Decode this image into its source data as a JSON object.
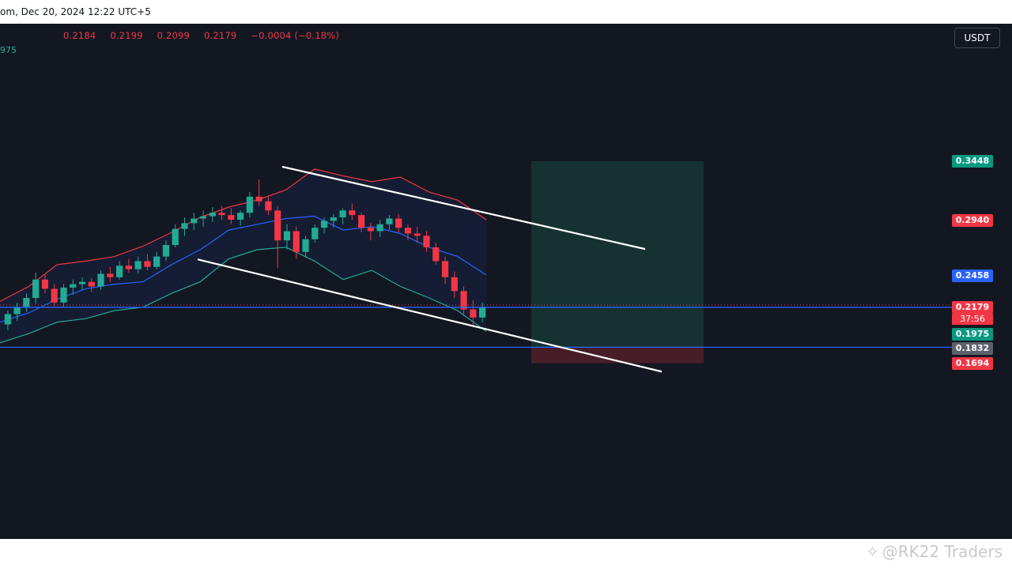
{
  "header": {
    "text": "om, Dec 20, 2024 12:22 UTC+5"
  },
  "ohlc": {
    "open": "0.2184",
    "high": "0.2199",
    "low": "0.2099",
    "close": "0.2179",
    "change": "−0.0004 (−0.18%)"
  },
  "indicator_value": "975",
  "currency": "USDT",
  "price_labels": {
    "target": "0.3448",
    "upper_band": "0.2940",
    "middle_band": "0.2458",
    "last_price": "0.2179",
    "countdown": "37:56",
    "lower_band": "0.1975",
    "entry": "0.1832",
    "stop": "0.1694"
  },
  "colors": {
    "background": "#131722",
    "up": "#22ab94",
    "down": "#f23645",
    "upper_band": "#f23645",
    "middle_band": "#2962ff",
    "lower_band": "#22ab94",
    "trendline": "#ffffff",
    "hline": "#2962ff",
    "profit_zone": "#163431",
    "loss_zone": "#4a1f29"
  },
  "watermark": "@RK22 Traders",
  "chart_data": {
    "type": "candlestick",
    "y_unit": "USDT",
    "bands": {
      "upper": [
        0.223,
        0.236,
        0.255,
        0.258,
        0.262,
        0.271,
        0.283,
        0.296,
        0.305,
        0.311,
        0.32,
        0.338,
        0.332,
        0.327,
        0.331,
        0.318,
        0.311,
        0.294
      ],
      "middle": [
        0.205,
        0.213,
        0.225,
        0.234,
        0.238,
        0.24,
        0.255,
        0.268,
        0.285,
        0.29,
        0.295,
        0.297,
        0.285,
        0.288,
        0.282,
        0.27,
        0.262,
        0.246
      ],
      "lower": [
        0.187,
        0.195,
        0.205,
        0.208,
        0.215,
        0.218,
        0.23,
        0.24,
        0.26,
        0.268,
        0.27,
        0.258,
        0.242,
        0.25,
        0.236,
        0.226,
        0.215,
        0.197
      ]
    },
    "candles": [
      {
        "o": 0.203,
        "h": 0.215,
        "l": 0.198,
        "c": 0.212
      },
      {
        "o": 0.212,
        "h": 0.222,
        "l": 0.206,
        "c": 0.218
      },
      {
        "o": 0.218,
        "h": 0.23,
        "l": 0.214,
        "c": 0.226
      },
      {
        "o": 0.226,
        "h": 0.248,
        "l": 0.221,
        "c": 0.242
      },
      {
        "o": 0.242,
        "h": 0.247,
        "l": 0.23,
        "c": 0.234
      },
      {
        "o": 0.234,
        "h": 0.238,
        "l": 0.219,
        "c": 0.222
      },
      {
        "o": 0.222,
        "h": 0.238,
        "l": 0.218,
        "c": 0.235
      },
      {
        "o": 0.235,
        "h": 0.242,
        "l": 0.229,
        "c": 0.238
      },
      {
        "o": 0.238,
        "h": 0.244,
        "l": 0.233,
        "c": 0.24
      },
      {
        "o": 0.24,
        "h": 0.243,
        "l": 0.231,
        "c": 0.236
      },
      {
        "o": 0.236,
        "h": 0.25,
        "l": 0.233,
        "c": 0.247
      },
      {
        "o": 0.247,
        "h": 0.253,
        "l": 0.24,
        "c": 0.244
      },
      {
        "o": 0.244,
        "h": 0.258,
        "l": 0.242,
        "c": 0.254
      },
      {
        "o": 0.254,
        "h": 0.26,
        "l": 0.248,
        "c": 0.251
      },
      {
        "o": 0.251,
        "h": 0.262,
        "l": 0.247,
        "c": 0.258
      },
      {
        "o": 0.258,
        "h": 0.264,
        "l": 0.25,
        "c": 0.253
      },
      {
        "o": 0.253,
        "h": 0.266,
        "l": 0.251,
        "c": 0.262
      },
      {
        "o": 0.262,
        "h": 0.276,
        "l": 0.258,
        "c": 0.272
      },
      {
        "o": 0.272,
        "h": 0.29,
        "l": 0.27,
        "c": 0.286
      },
      {
        "o": 0.286,
        "h": 0.296,
        "l": 0.28,
        "c": 0.291
      },
      {
        "o": 0.291,
        "h": 0.3,
        "l": 0.285,
        "c": 0.295
      },
      {
        "o": 0.295,
        "h": 0.302,
        "l": 0.288,
        "c": 0.297
      },
      {
        "o": 0.297,
        "h": 0.305,
        "l": 0.292,
        "c": 0.3
      },
      {
        "o": 0.3,
        "h": 0.306,
        "l": 0.294,
        "c": 0.298
      },
      {
        "o": 0.298,
        "h": 0.304,
        "l": 0.29,
        "c": 0.294
      },
      {
        "o": 0.294,
        "h": 0.302,
        "l": 0.289,
        "c": 0.3
      },
      {
        "o": 0.3,
        "h": 0.318,
        "l": 0.296,
        "c": 0.314
      },
      {
        "o": 0.314,
        "h": 0.329,
        "l": 0.306,
        "c": 0.31
      },
      {
        "o": 0.31,
        "h": 0.315,
        "l": 0.298,
        "c": 0.302
      },
      {
        "o": 0.302,
        "h": 0.306,
        "l": 0.252,
        "c": 0.276
      },
      {
        "o": 0.276,
        "h": 0.29,
        "l": 0.268,
        "c": 0.284
      },
      {
        "o": 0.284,
        "h": 0.288,
        "l": 0.26,
        "c": 0.266
      },
      {
        "o": 0.266,
        "h": 0.28,
        "l": 0.262,
        "c": 0.277
      },
      {
        "o": 0.277,
        "h": 0.29,
        "l": 0.274,
        "c": 0.287
      },
      {
        "o": 0.287,
        "h": 0.296,
        "l": 0.282,
        "c": 0.293
      },
      {
        "o": 0.293,
        "h": 0.299,
        "l": 0.287,
        "c": 0.296
      },
      {
        "o": 0.296,
        "h": 0.304,
        "l": 0.29,
        "c": 0.302
      },
      {
        "o": 0.302,
        "h": 0.308,
        "l": 0.294,
        "c": 0.298
      },
      {
        "o": 0.298,
        "h": 0.3,
        "l": 0.283,
        "c": 0.287
      },
      {
        "o": 0.287,
        "h": 0.291,
        "l": 0.276,
        "c": 0.284
      },
      {
        "o": 0.284,
        "h": 0.294,
        "l": 0.279,
        "c": 0.29
      },
      {
        "o": 0.29,
        "h": 0.298,
        "l": 0.285,
        "c": 0.295
      },
      {
        "o": 0.295,
        "h": 0.299,
        "l": 0.283,
        "c": 0.287
      },
      {
        "o": 0.287,
        "h": 0.29,
        "l": 0.276,
        "c": 0.282
      },
      {
        "o": 0.282,
        "h": 0.288,
        "l": 0.274,
        "c": 0.28
      },
      {
        "o": 0.28,
        "h": 0.284,
        "l": 0.266,
        "c": 0.27
      },
      {
        "o": 0.27,
        "h": 0.274,
        "l": 0.255,
        "c": 0.258
      },
      {
        "o": 0.258,
        "h": 0.262,
        "l": 0.238,
        "c": 0.244
      },
      {
        "o": 0.244,
        "h": 0.249,
        "l": 0.226,
        "c": 0.232
      },
      {
        "o": 0.232,
        "h": 0.236,
        "l": 0.21,
        "c": 0.216
      },
      {
        "o": 0.216,
        "h": 0.224,
        "l": 0.201,
        "c": 0.209
      },
      {
        "o": 0.209,
        "h": 0.222,
        "l": 0.205,
        "c": 0.218
      }
    ],
    "trendlines": [
      {
        "name": "upper-channel",
        "from": {
          "x": 0.357,
          "y": 0.34
        },
        "to": {
          "x": 0.816,
          "y": 0.2685
        }
      },
      {
        "name": "lower-channel",
        "from": {
          "x": 0.25,
          "y": 0.2595
        },
        "to": {
          "x": 0.837,
          "y": 0.162
        }
      }
    ],
    "horizontal_lines": [
      0.2179,
      0.1832
    ],
    "position": {
      "type": "long",
      "entry": 0.1832,
      "target": 0.3448,
      "stop": 0.1694
    },
    "price_scale": [
      0.1694,
      0.1832,
      0.1975,
      0.2179,
      0.2458,
      0.294,
      0.3448
    ],
    "x_range": [
      0,
      1
    ]
  }
}
